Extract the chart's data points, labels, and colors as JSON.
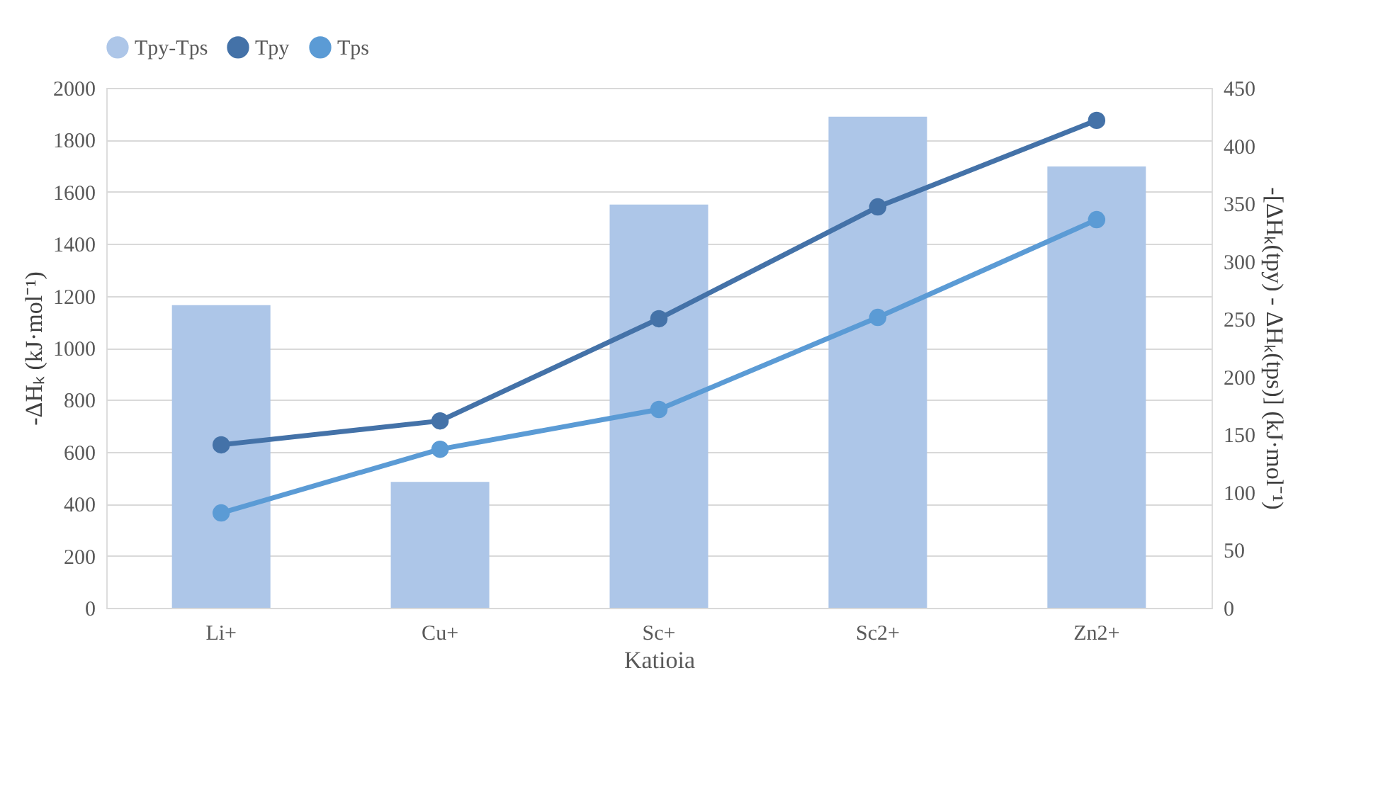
{
  "chart_data": {
    "type": "line",
    "xlabel": "Katioia",
    "ylabel": "-ΔHₖ (kJ·mol⁻¹)",
    "y2label": "-[ΔHₖ(tpy) - ΔHₖ(tps)] (kJ·mol⁻¹)",
    "categories": [
      "Li+",
      "Cu+",
      "Sc+",
      "Sc2+",
      "Zn2+"
    ],
    "series": [
      {
        "name": "Tpy-Tps",
        "type": "bar",
        "axis": "y2",
        "color": "#adc6e8",
        "values": [
          262,
          109,
          349,
          425,
          382
        ]
      },
      {
        "name": "Tpy",
        "color": "#4472a8",
        "values": [
          627,
          719,
          1112,
          1542,
          1875
        ]
      },
      {
        "name": "Tps",
        "color": "#5b9bd5",
        "values": [
          365,
          610,
          763,
          1117,
          1493
        ]
      }
    ],
    "ylim": [
      0,
      2000
    ],
    "yticks": [
      0,
      200,
      400,
      600,
      800,
      1000,
      1200,
      1400,
      1600,
      1800,
      2000
    ],
    "y2lim": [
      0,
      450
    ],
    "y2ticks": [
      0,
      50,
      100,
      150,
      200,
      250,
      300,
      350,
      400,
      450
    ],
    "grid": "y",
    "legend": "top",
    "marker": "circle",
    "line_style": "solid"
  }
}
